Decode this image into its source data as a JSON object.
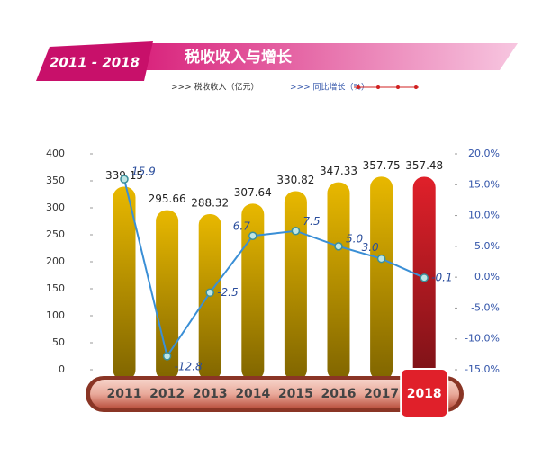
{
  "chart_data": {
    "type": "bar_line",
    "badge": "2011 - 2018",
    "title": "税收收入与增长",
    "categories": [
      "2011",
      "2012",
      "2013",
      "2014",
      "2015",
      "2016",
      "2017",
      "2018"
    ],
    "series": [
      {
        "name": ">>> 税收收入（亿元）",
        "color": "#e8b800",
        "colors": [
          "#e8b800",
          "#e8b800",
          "#e8b800",
          "#e8b800",
          "#e8b800",
          "#e8b800",
          "#e8b800",
          "#e0202a"
        ],
        "values": [
          339.15,
          295.66,
          288.32,
          307.64,
          330.82,
          347.33,
          357.75,
          357.48
        ]
      },
      {
        "name": ">>> 同比增长（%）",
        "color": "#3a8fd6",
        "axis": "y2",
        "values": [
          15.9,
          -12.8,
          -2.5,
          6.7,
          7.5,
          5.0,
          3.0,
          -0.1
        ],
        "value_labels": [
          "15.9",
          "-12.8",
          "-2.5",
          "6.7",
          "7.5",
          "5.0",
          "3.0",
          "-0.1"
        ]
      }
    ],
    "ylim": [
      0,
      400
    ],
    "yticks": [
      0,
      50,
      100,
      150,
      200,
      250,
      300,
      350,
      400
    ],
    "y2lim": [
      -15,
      20
    ],
    "y2ticks": [
      {
        "value": -15,
        "label": "-15.0%"
      },
      {
        "value": -10,
        "label": "-10.0%"
      },
      {
        "value": -5,
        "label": "-5.0%"
      },
      {
        "value": 0,
        "label": "0.0%"
      },
      {
        "value": 5,
        "label": "5.0%"
      },
      {
        "value": 10,
        "label": "10.0%"
      },
      {
        "value": 15,
        "label": "15.0%"
      },
      {
        "value": 20,
        "label": "20.0%"
      }
    ]
  }
}
